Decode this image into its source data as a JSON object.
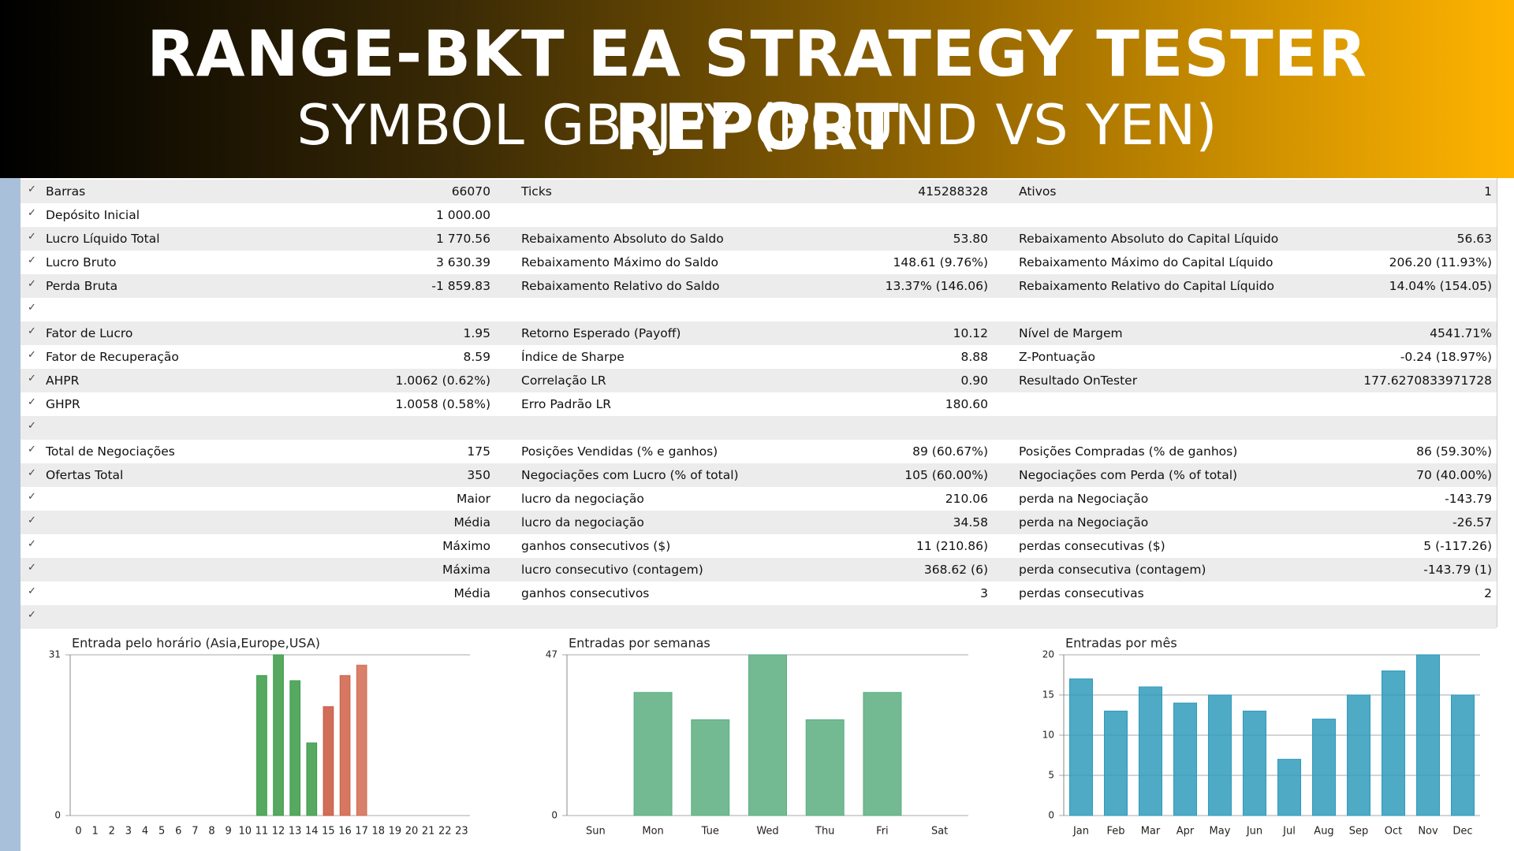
{
  "header": {
    "title": "RANGE-BKT EA STRATEGY TESTER REPORT",
    "subtitle": "SYMBOL GBPJPY (POUND VS YEN)"
  },
  "table": {
    "rows": [
      [
        "Barras",
        "66070",
        "Ticks",
        "415288328",
        "Ativos",
        "1"
      ],
      [
        "Depósito Inicial",
        "1 000.00",
        null,
        null,
        null,
        null
      ],
      [
        "Lucro Líquido Total",
        "1 770.56",
        "Rebaixamento Absoluto do Saldo",
        "53.80",
        "Rebaixamento Absoluto do Capital Líquido",
        "56.63"
      ],
      [
        "Lucro Bruto",
        "3 630.39",
        "Rebaixamento Máximo do Saldo",
        "148.61 (9.76%)",
        "Rebaixamento Máximo do Capital Líquido",
        "206.20 (11.93%)"
      ],
      [
        "Perda Bruta",
        "-1 859.83",
        "Rebaixamento Relativo do Saldo",
        "13.37% (146.06)",
        "Rebaixamento Relativo do Capital Líquido",
        "14.04% (154.05)"
      ],
      [
        null,
        null,
        null,
        null,
        null,
        null
      ],
      [
        "Fator de Lucro",
        "1.95",
        "Retorno Esperado (Payoff)",
        "10.12",
        "Nível de Margem",
        "4541.71%"
      ],
      [
        "Fator de Recuperação",
        "8.59",
        "Índice de Sharpe",
        "8.88",
        "Z-Pontuação",
        "-0.24 (18.97%)"
      ],
      [
        "AHPR",
        "1.0062 (0.62%)",
        "Correlação LR",
        "0.90",
        "Resultado OnTester",
        "177.6270833971728"
      ],
      [
        "GHPR",
        "1.0058 (0.58%)",
        "Erro Padrão LR",
        "180.60",
        null,
        null
      ],
      [
        null,
        null,
        null,
        null,
        null,
        null
      ],
      [
        "Total de Negociações",
        "175",
        "Posições Vendidas (% e ganhos)",
        "89 (60.67%)",
        "Posições Compradas (% de ganhos)",
        "86 (59.30%)"
      ],
      [
        "Ofertas Total",
        "350",
        "Negociações com Lucro (% of total)",
        "105 (60.00%)",
        "Negociações com Perda (% of total)",
        "70 (40.00%)"
      ],
      [
        null,
        "Maior",
        "lucro da negociação",
        "210.06",
        "perda na Negociação",
        "-143.79"
      ],
      [
        null,
        "Média",
        "lucro da negociação",
        "34.58",
        "perda na Negociação",
        "-26.57"
      ],
      [
        null,
        "Máximo",
        "ganhos consecutivos ($)",
        "11 (210.86)",
        "perdas consecutivas ($)",
        "5 (-117.26)"
      ],
      [
        null,
        "Máxima",
        "lucro consecutivo (contagem)",
        "368.62 (6)",
        "perda consecutiva (contagem)",
        "-143.79 (1)"
      ],
      [
        null,
        "Média",
        "ganhos consecutivos",
        "3",
        "perdas consecutivas",
        "2"
      ],
      [
        null,
        null,
        null,
        null,
        null,
        null
      ]
    ]
  },
  "chart_data": [
    {
      "type": "bar",
      "title": "Entrada pelo horário (Asia,Europe,USA)",
      "categories": [
        "0",
        "1",
        "2",
        "3",
        "4",
        "5",
        "6",
        "7",
        "8",
        "9",
        "10",
        "11",
        "12",
        "13",
        "14",
        "15",
        "16",
        "17",
        "18",
        "19",
        "20",
        "21",
        "22",
        "23"
      ],
      "values": [
        0,
        0,
        0,
        0,
        0,
        0,
        0,
        0,
        0,
        0,
        0,
        27,
        31,
        26,
        14,
        21,
        27,
        29,
        0,
        0,
        0,
        0,
        0,
        0
      ],
      "colors": [
        "#2e8b3a",
        "#2e8b3a",
        "#2e8b3a",
        "#2e8b3a",
        "#2e8b3a",
        "#2e8b3a",
        "#2e8b3a",
        "#2e8b3a",
        "#2e8b3a",
        "#2e8b3a",
        "#2e8b3a",
        "#3a9a45",
        "#3a9a45",
        "#3a9a45",
        "#3a9a45",
        "#c8553d",
        "#cf5f45",
        "#d26a50",
        "#c8553d",
        "#c8553d",
        "#c8553d",
        "#c8553d",
        "#c8553d",
        "#c8553d"
      ],
      "ylim": [
        0,
        31
      ],
      "yticks": [
        0,
        31
      ],
      "grid": true
    },
    {
      "type": "bar",
      "title": "Entradas por semanas",
      "categories": [
        "Sun",
        "Mon",
        "Tue",
        "Wed",
        "Thu",
        "Fri",
        "Sat"
      ],
      "values": [
        0,
        36,
        28,
        47,
        28,
        36,
        0
      ],
      "color": "#5aae80",
      "ylim": [
        0,
        47
      ],
      "yticks": [
        0,
        47
      ],
      "grid": true
    },
    {
      "type": "bar",
      "title": "Entradas por mês",
      "categories": [
        "Jan",
        "Feb",
        "Mar",
        "Apr",
        "May",
        "Jun",
        "Jul",
        "Aug",
        "Sep",
        "Oct",
        "Nov",
        "Dec"
      ],
      "values": [
        17,
        13,
        16,
        14,
        15,
        13,
        7,
        12,
        15,
        18,
        20,
        15
      ],
      "color": "#2f9bbb",
      "ylim": [
        0,
        20
      ],
      "yticks": [
        0,
        5,
        10,
        15,
        20
      ],
      "grid": true
    }
  ]
}
